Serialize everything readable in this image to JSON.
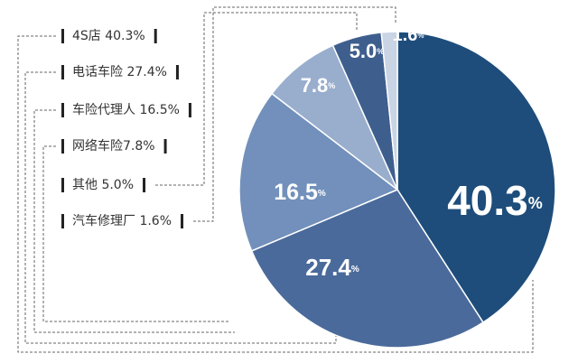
{
  "chart_data": {
    "type": "pie",
    "categories": [
      "4S店 40.3%",
      "电话车险 27.4%",
      "车险代理人 16.5%",
      "网络车险7.8%",
      "其他 5.0%",
      "汽车修理厂 1.6%"
    ],
    "values": [
      40.3,
      27.4,
      16.5,
      7.8,
      5.0,
      1.6
    ],
    "value_labels": [
      "40.3%",
      "27.4%",
      "16.5%",
      "7.8%",
      "5.0%",
      "1.6%"
    ],
    "colors": [
      "#1e4d7b",
      "#4a6a9b",
      "#7290bb",
      "#99aecd",
      "#3e5f8e",
      "#c9d4e4"
    ]
  }
}
